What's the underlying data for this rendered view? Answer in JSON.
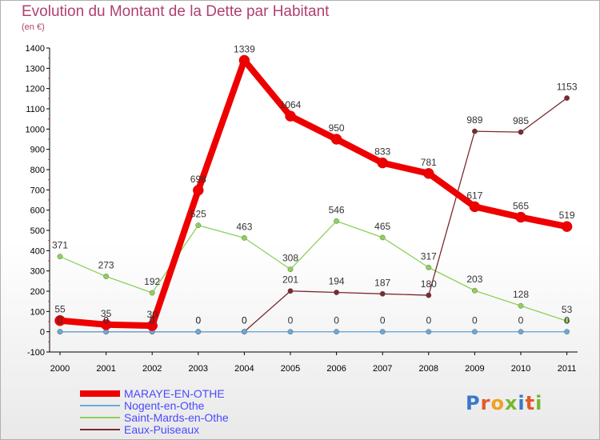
{
  "header": {
    "title": "Evolution du Montant de la Dette par Habitant",
    "unit": "(en €)"
  },
  "logo": {
    "text": "Proxiti",
    "colors": [
      "#3a78c8",
      "#e05a2a",
      "#f0a020",
      "#7ab630",
      "#3a78c8",
      "#e05a2a",
      "#7ab630"
    ]
  },
  "chart_data": {
    "type": "line",
    "x": [
      "2000",
      "2001",
      "2002",
      "2003",
      "2004",
      "2005",
      "2006",
      "2007",
      "2008",
      "2009",
      "2010",
      "2011"
    ],
    "ylim": [
      -100,
      1400
    ],
    "yticks": [
      -100,
      0,
      100,
      200,
      300,
      400,
      500,
      600,
      700,
      800,
      900,
      1000,
      1100,
      1200,
      1300,
      1400
    ],
    "grid": false,
    "legend_position": "bottom-left",
    "series": [
      {
        "name": "MARAYE-EN-OTHE",
        "color": "#ee0000",
        "values": [
          55,
          35,
          30,
          698,
          1339,
          1064,
          950,
          833,
          781,
          617,
          565,
          519
        ],
        "labels": [
          "55",
          "35",
          "30",
          "698",
          "1339",
          "1064",
          "950",
          "833",
          "781",
          "617",
          "565",
          "519"
        ]
      },
      {
        "name": "Nogent-en-Othe",
        "color": "#6aa8d8",
        "values": [
          0,
          0,
          0,
          0,
          0,
          0,
          0,
          0,
          0,
          0,
          0,
          0
        ],
        "labels": [
          "0",
          "0",
          "0",
          "0",
          "0",
          "0",
          "0",
          "0",
          "0",
          "0",
          "0",
          "0"
        ]
      },
      {
        "name": "Saint-Mards-en-Othe",
        "color": "#8fd05a",
        "values": [
          371,
          273,
          192,
          525,
          463,
          308,
          546,
          465,
          317,
          203,
          128,
          53
        ],
        "labels": [
          "371",
          "273",
          "192",
          "525",
          "463",
          "308",
          "546",
          "465",
          "317",
          "203",
          "128",
          "53"
        ]
      },
      {
        "name": "Eaux-Puiseaux",
        "color": "#7a2a30",
        "values": [
          0,
          0,
          0,
          0,
          0,
          201,
          194,
          187,
          180,
          989,
          985,
          1153
        ],
        "labels": [
          "0",
          "0",
          "0",
          "0",
          "0",
          "201",
          "194",
          "187",
          "180",
          "989",
          "985",
          "1153"
        ]
      }
    ]
  }
}
